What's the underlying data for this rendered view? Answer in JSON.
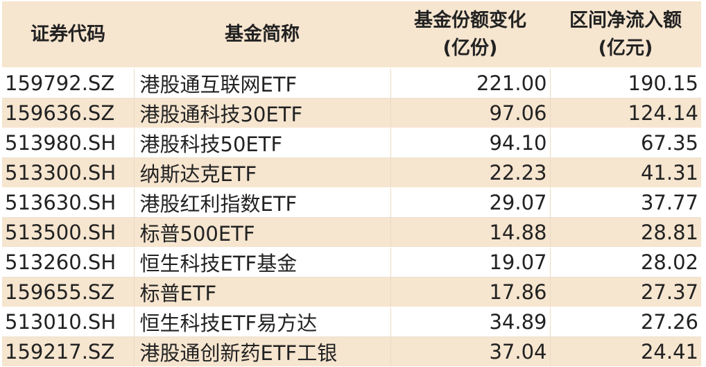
{
  "headers": {
    "code": "证券代码",
    "name": "基金简称",
    "share_change_line1": "基金份额变化",
    "share_change_line2": "(亿份)",
    "net_inflow_line1": "区间净流入额",
    "net_inflow_line2": "(亿元)"
  },
  "rows": [
    {
      "code": "159792.SZ",
      "name": "港股通互联网ETF",
      "share_change": "221.00",
      "net_inflow": "190.15"
    },
    {
      "code": "159636.SZ",
      "name": "港股通科技30ETF",
      "share_change": "97.06",
      "net_inflow": "124.14"
    },
    {
      "code": "513980.SH",
      "name": "港股科技50ETF",
      "share_change": "94.10",
      "net_inflow": "67.35"
    },
    {
      "code": "513300.SH",
      "name": "纳斯达克ETF",
      "share_change": "22.23",
      "net_inflow": "41.31"
    },
    {
      "code": "513630.SH",
      "name": "港股红利指数ETF",
      "share_change": "29.07",
      "net_inflow": "37.77"
    },
    {
      "code": "513500.SH",
      "name": "标普500ETF",
      "share_change": "14.88",
      "net_inflow": "28.81"
    },
    {
      "code": "513260.SH",
      "name": "恒生科技ETF基金",
      "share_change": "19.07",
      "net_inflow": "28.02"
    },
    {
      "code": "159655.SZ",
      "name": "标普ETF",
      "share_change": "17.86",
      "net_inflow": "27.37"
    },
    {
      "code": "513010.SH",
      "name": "恒生科技ETF易方达",
      "share_change": "34.89",
      "net_inflow": "27.26"
    },
    {
      "code": "159217.SZ",
      "name": "港股通创新药ETF工银",
      "share_change": "37.04",
      "net_inflow": "24.41"
    }
  ]
}
